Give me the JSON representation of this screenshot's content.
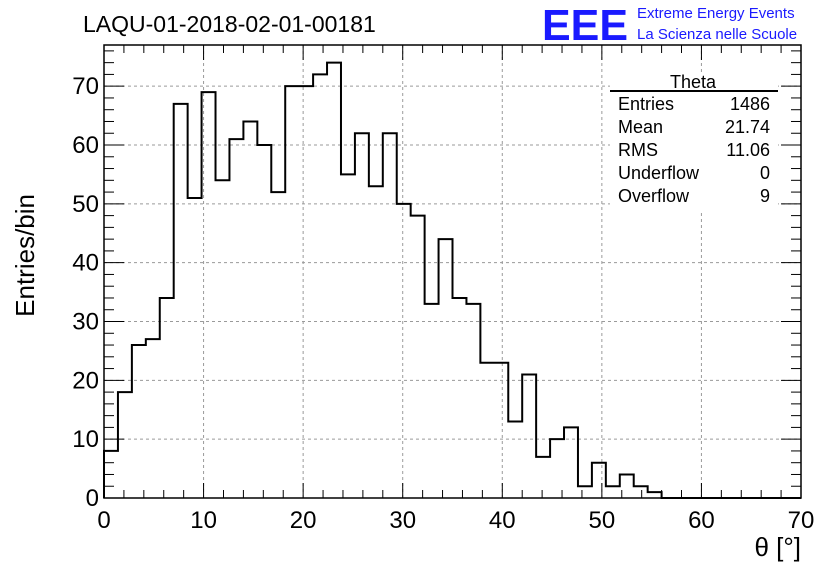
{
  "run_title": "LAQU-01-2018-02-01-00181",
  "logo": {
    "mark": "EEE",
    "line1": "Extreme Energy Events",
    "line2": "La Scienza nelle Scuole",
    "color": "#1a1aff"
  },
  "stats": {
    "title": "Theta",
    "rows": [
      {
        "label": "Entries",
        "value": "1486"
      },
      {
        "label": "Mean",
        "value": "21.74"
      },
      {
        "label": "RMS",
        "value": "11.06"
      },
      {
        "label": "Underflow",
        "value": "0"
      },
      {
        "label": "Overflow",
        "value": "9"
      }
    ]
  },
  "chart_data": {
    "type": "bar",
    "style": "step-histogram",
    "title": "LAQU-01-2018-02-01-00181",
    "xlabel": "θ [°]",
    "ylabel": "Entries/bin",
    "xlim": [
      0,
      70
    ],
    "ylim": [
      0,
      77
    ],
    "grid": true,
    "bin_width": 1.4,
    "x_ticks": [
      0,
      10,
      20,
      30,
      40,
      50,
      60,
      70
    ],
    "y_ticks": [
      0,
      10,
      20,
      30,
      40,
      50,
      60,
      70
    ],
    "values": [
      8,
      18,
      26,
      27,
      34,
      67,
      51,
      69,
      54,
      61,
      64,
      60,
      52,
      70,
      70,
      72,
      74,
      55,
      62,
      53,
      62,
      50,
      48,
      33,
      44,
      34,
      33,
      23,
      23,
      13,
      21,
      7,
      10,
      12,
      2,
      6,
      2,
      4,
      2,
      1,
      0,
      0,
      0,
      0,
      0,
      0,
      0,
      0,
      0,
      0
    ]
  }
}
